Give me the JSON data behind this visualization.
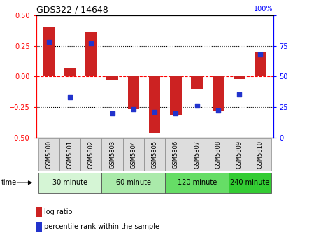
{
  "title": "GDS322 / 14648",
  "samples": [
    "GSM5800",
    "GSM5801",
    "GSM5802",
    "GSM5803",
    "GSM5804",
    "GSM5805",
    "GSM5806",
    "GSM5807",
    "GSM5808",
    "GSM5809",
    "GSM5810"
  ],
  "log_ratio": [
    0.4,
    0.07,
    0.36,
    -0.03,
    -0.27,
    -0.46,
    -0.32,
    -0.1,
    -0.28,
    -0.02,
    0.2
  ],
  "percentile": [
    78,
    33,
    77,
    20,
    23,
    21,
    20,
    26,
    22,
    35,
    68
  ],
  "groups": [
    {
      "label": "30 minute",
      "start": 0,
      "end": 2,
      "color": "#d5f5d5"
    },
    {
      "label": "60 minute",
      "start": 3,
      "end": 5,
      "color": "#aaeaaa"
    },
    {
      "label": "120 minute",
      "start": 6,
      "end": 8,
      "color": "#66dd66"
    },
    {
      "label": "240 minute",
      "start": 9,
      "end": 10,
      "color": "#33cc33"
    }
  ],
  "bar_color": "#cc2222",
  "dot_color": "#2233cc",
  "ylim_left": [
    -0.5,
    0.5
  ],
  "ylim_right": [
    0,
    100
  ],
  "yticks_left": [
    -0.5,
    -0.25,
    0.0,
    0.25,
    0.5
  ],
  "yticks_right": [
    0,
    25,
    50,
    75,
    100
  ],
  "legend_log_ratio": "log ratio",
  "legend_percentile": "percentile rank within the sample",
  "time_label": "time",
  "bg_color": "#ffffff",
  "sample_box_color": "#dddddd",
  "right_axis_label": "100%"
}
